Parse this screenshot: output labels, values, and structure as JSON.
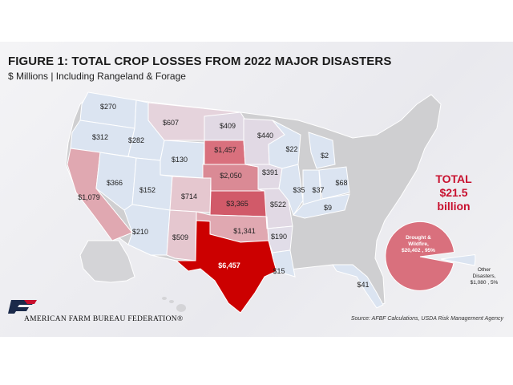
{
  "title": "FIGURE 1: TOTAL CROP LOSSES FROM 2022 MAJOR DISASTERS",
  "subtitle": "$ Millions | Including Rangeland & Forage",
  "total": {
    "label": "TOTAL",
    "value": "$21.5 billion"
  },
  "colors": {
    "accent": "#c8102e",
    "high": "#cc0000",
    "mid": "#d9707d",
    "low": "#d8c4cf",
    "lowest": "#dbe4f1",
    "none": "#cfcfd1"
  },
  "states": [
    {
      "id": "WA",
      "value": "$270"
    },
    {
      "id": "OR",
      "value": "$312"
    },
    {
      "id": "ID",
      "value": "$282"
    },
    {
      "id": "MT",
      "value": "$607"
    },
    {
      "id": "ND",
      "value": "$409"
    },
    {
      "id": "MN",
      "value": "$440"
    },
    {
      "id": "WY",
      "value": "$130"
    },
    {
      "id": "SD",
      "value": "$1,457"
    },
    {
      "id": "WI",
      "value": "$22"
    },
    {
      "id": "MI",
      "value": "$2"
    },
    {
      "id": "NV",
      "value": "$366"
    },
    {
      "id": "UT",
      "value": "$152"
    },
    {
      "id": "CO",
      "value": "$714"
    },
    {
      "id": "NE",
      "value": "$2,050"
    },
    {
      "id": "IA",
      "value": "$391"
    },
    {
      "id": "IL",
      "value": "$35"
    },
    {
      "id": "IN",
      "value": "$37"
    },
    {
      "id": "OH",
      "value": "$68"
    },
    {
      "id": "CA",
      "value": "$1,079"
    },
    {
      "id": "KS",
      "value": "$3,365"
    },
    {
      "id": "MO",
      "value": "$522"
    },
    {
      "id": "KY",
      "value": "$9"
    },
    {
      "id": "AZ",
      "value": "$210"
    },
    {
      "id": "NM",
      "value": "$509"
    },
    {
      "id": "OK",
      "value": "$1,341"
    },
    {
      "id": "AR",
      "value": "$190"
    },
    {
      "id": "TX",
      "value": "$6,457"
    },
    {
      "id": "LA",
      "value": "$15"
    },
    {
      "id": "FL",
      "value": "$41"
    }
  ],
  "pie": {
    "slices": [
      {
        "name": "Drought & Wildfire",
        "value": 20402,
        "percent": 95,
        "label_line1": "Drought &",
        "label_line2": "Wildfire,",
        "label_line3": "$20,402 , 95%"
      },
      {
        "name": "Other Disasters",
        "value": 1080,
        "percent": 5,
        "label_line1": "Other",
        "label_line2": "Disasters,",
        "label_line3": "$1,080 , 5%"
      }
    ]
  },
  "organization": "AMERICAN FARM BUREAU FEDERATION®",
  "source": "Source: AFBF Calculations, USDA Risk Management Agency"
}
